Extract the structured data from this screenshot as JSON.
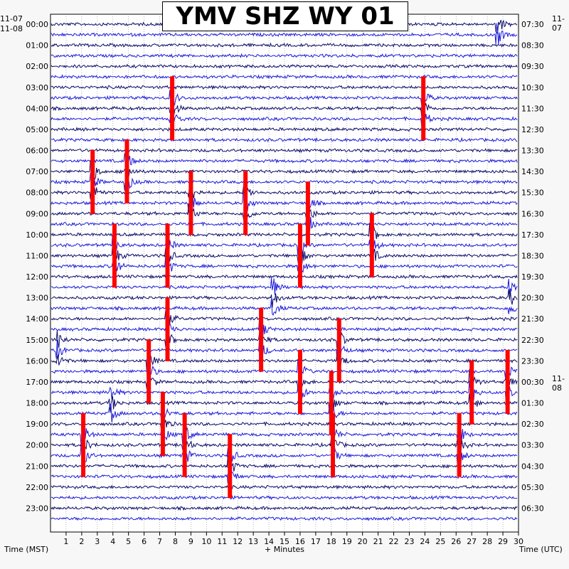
{
  "chart_data": {
    "type": "line",
    "title": "YMV SHZ WY 01",
    "x_caption": "+ Minutes",
    "left_caption": "Time (MST)",
    "right_caption": "Time (UTC)",
    "left_date_top": "11-07",
    "left_date_start": "11-08",
    "right_date_top": "11-07",
    "right_date_mid": "11-08",
    "x_range": [
      0,
      30
    ],
    "x_ticks": [
      "1",
      "2",
      "3",
      "4",
      "5",
      "6",
      "7",
      "8",
      "9",
      "10",
      "11",
      "12",
      "13",
      "14",
      "15",
      "16",
      "17",
      "18",
      "19",
      "20",
      "21",
      "22",
      "23",
      "24",
      "25",
      "26",
      "27",
      "28",
      "29",
      "30"
    ],
    "left_hour_labels": [
      "00:00",
      "01:00",
      "02:00",
      "03:00",
      "04:00",
      "05:00",
      "06:00",
      "07:00",
      "08:00",
      "09:00",
      "10:00",
      "11:00",
      "12:00",
      "13:00",
      "14:00",
      "15:00",
      "16:00",
      "17:00",
      "18:00",
      "19:00",
      "20:00",
      "21:00",
      "22:00",
      "23:00"
    ],
    "right_hour_labels": [
      "07:30",
      "08:30",
      "09:30",
      "10:30",
      "11:30",
      "12:30",
      "13:30",
      "14:30",
      "15:30",
      "16:30",
      "17:30",
      "18:30",
      "19:30",
      "20:30",
      "21:30",
      "22:30",
      "23:30",
      "00:30",
      "01:30",
      "02:30",
      "03:30",
      "04:30",
      "05:30",
      "06:30"
    ],
    "rows_per_hour": 2,
    "trace_colors": [
      "#0a0a6a",
      "#1a1adc"
    ],
    "clip_color": "#ff0000",
    "grid": "dotted vertical lines at each minute",
    "events": [
      {
        "x": 28.7,
        "hour": 0,
        "amp": 0.9
      },
      {
        "x": 7.8,
        "hour": 4,
        "amp": 1.0,
        "clip": true
      },
      {
        "x": 23.9,
        "hour": 4,
        "amp": 1.0,
        "clip": true
      },
      {
        "x": 2.7,
        "hour": 7.5,
        "amp": 1.0,
        "clip": true
      },
      {
        "x": 4.9,
        "hour": 7,
        "amp": 0.9,
        "clip": true
      },
      {
        "x": 9.0,
        "hour": 8.5,
        "amp": 1.0,
        "clip": true
      },
      {
        "x": 12.5,
        "hour": 8.5,
        "amp": 1.0,
        "clip": true
      },
      {
        "x": 16.5,
        "hour": 9,
        "amp": 1.0,
        "clip": true
      },
      {
        "x": 20.6,
        "hour": 10.5,
        "amp": 1.0,
        "clip": true
      },
      {
        "x": 7.5,
        "hour": 11,
        "amp": 1.0,
        "clip": true
      },
      {
        "x": 4.1,
        "hour": 11,
        "amp": 1.0,
        "clip": true
      },
      {
        "x": 16.0,
        "hour": 11,
        "amp": 1.0,
        "clip": true
      },
      {
        "x": 7.5,
        "hour": 14.5,
        "amp": 1.0,
        "clip": true
      },
      {
        "x": 13.5,
        "hour": 15,
        "amp": 1.0,
        "clip": true
      },
      {
        "x": 18.5,
        "hour": 15.5,
        "amp": 1.0,
        "clip": true
      },
      {
        "x": 6.3,
        "hour": 16.5,
        "amp": 1.0,
        "clip": true
      },
      {
        "x": 16.0,
        "hour": 17,
        "amp": 1.0,
        "clip": true
      },
      {
        "x": 18.0,
        "hour": 18,
        "amp": 1.0,
        "clip": true
      },
      {
        "x": 29.3,
        "hour": 17,
        "amp": 1.0,
        "clip": true
      },
      {
        "x": 27.0,
        "hour": 17.5,
        "amp": 1.0,
        "clip": true
      },
      {
        "x": 7.2,
        "hour": 19,
        "amp": 1.0,
        "clip": true
      },
      {
        "x": 8.6,
        "hour": 20,
        "amp": 1.0,
        "clip": true
      },
      {
        "x": 18.1,
        "hour": 20,
        "amp": 1.0,
        "clip": true
      },
      {
        "x": 26.2,
        "hour": 20,
        "amp": 1.0,
        "clip": true
      },
      {
        "x": 2.1,
        "hour": 20,
        "amp": 1.0,
        "clip": true
      },
      {
        "x": 11.5,
        "hour": 21,
        "amp": 1.0,
        "clip": true
      },
      {
        "x": 3.9,
        "hour": 18,
        "amp": 0.8
      },
      {
        "x": 14.3,
        "hour": 13,
        "amp": 0.8
      },
      {
        "x": 0.5,
        "hour": 15.5,
        "amp": 0.8
      },
      {
        "x": 29.5,
        "hour": 13,
        "amp": 0.7
      }
    ]
  }
}
